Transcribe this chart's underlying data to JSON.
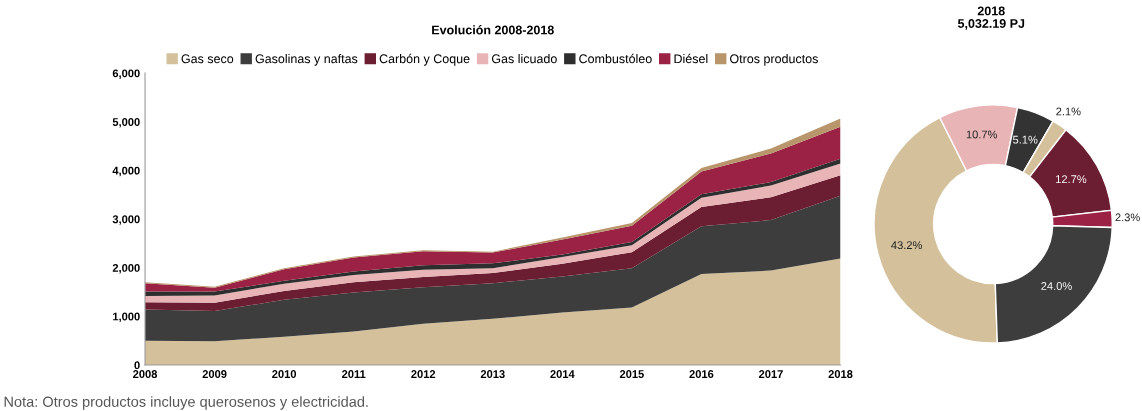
{
  "chart_data": [
    {
      "type": "area",
      "stacked": true,
      "title": "Evolución 2008-2018",
      "x": [
        2008,
        2009,
        2010,
        2011,
        2012,
        2013,
        2014,
        2015,
        2016,
        2017,
        2018
      ],
      "series": [
        {
          "name": "Gas seco",
          "color": "#d4c19c",
          "values": [
            500,
            490,
            580,
            690,
            850,
            950,
            1080,
            1180,
            1870,
            1940,
            2190
          ]
        },
        {
          "name": "Gasolinas y naftas",
          "color": "#3d3d3d",
          "values": [
            640,
            620,
            760,
            800,
            750,
            730,
            740,
            810,
            980,
            1040,
            1290
          ]
        },
        {
          "name": "Carbón y Coque",
          "color": "#6b1d31",
          "values": [
            150,
            170,
            180,
            210,
            210,
            210,
            260,
            330,
            400,
            470,
            420
          ]
        },
        {
          "name": "Gas licuado",
          "color": "#e8b4b6",
          "values": [
            130,
            150,
            150,
            150,
            150,
            100,
            140,
            140,
            190,
            240,
            240
          ]
        },
        {
          "name": "Combustóleo",
          "color": "#2e2e2e",
          "values": [
            90,
            80,
            60,
            70,
            90,
            100,
            50,
            70,
            70,
            70,
            100
          ]
        },
        {
          "name": "Diésel",
          "color": "#9b2245",
          "values": [
            170,
            80,
            240,
            290,
            290,
            220,
            310,
            330,
            470,
            590,
            660
          ]
        },
        {
          "name": "Otros productos",
          "color": "#b8956a",
          "values": [
            20,
            20,
            20,
            20,
            20,
            20,
            40,
            60,
            70,
            100,
            170
          ]
        }
      ],
      "xlim": [
        2008,
        2018
      ],
      "xticks": [
        2008,
        2009,
        2010,
        2011,
        2012,
        2013,
        2014,
        2015,
        2016,
        2017,
        2018
      ],
      "ylim": [
        0,
        6000
      ],
      "yticks": [
        0,
        {
          "value": 1000,
          "label": "1,000"
        },
        {
          "value": 2000,
          "label": "2,000"
        },
        {
          "value": 3000,
          "label": "3,000"
        },
        {
          "value": 4000,
          "label": "4,000"
        },
        {
          "value": 5000,
          "label": "5,000"
        },
        {
          "value": 6000,
          "label": "6,000"
        }
      ],
      "grid": false,
      "legend": "top",
      "annotations": [
        "Nota: Otros productos incluye querosenos y electricidad."
      ]
    },
    {
      "type": "donut",
      "title": "2018",
      "subtitle": "5,032.19 PJ",
      "categories": [
        null,
        null,
        null,
        null,
        null,
        null,
        null
      ],
      "values": [
        43.2,
        10.7,
        5.1,
        2.1,
        12.7,
        2.3,
        24.0
      ],
      "colors": [
        "#d4c19c",
        "#e8b4b6",
        "#333333",
        "#d4c19c",
        "#6b1d31",
        "#9b2245",
        "#3d3d3d"
      ],
      "value_labels": [
        "43.2%",
        "10.7%",
        "5.1%",
        "2.1%",
        "12.7%",
        "2.3%",
        "24.0%"
      ]
    }
  ]
}
